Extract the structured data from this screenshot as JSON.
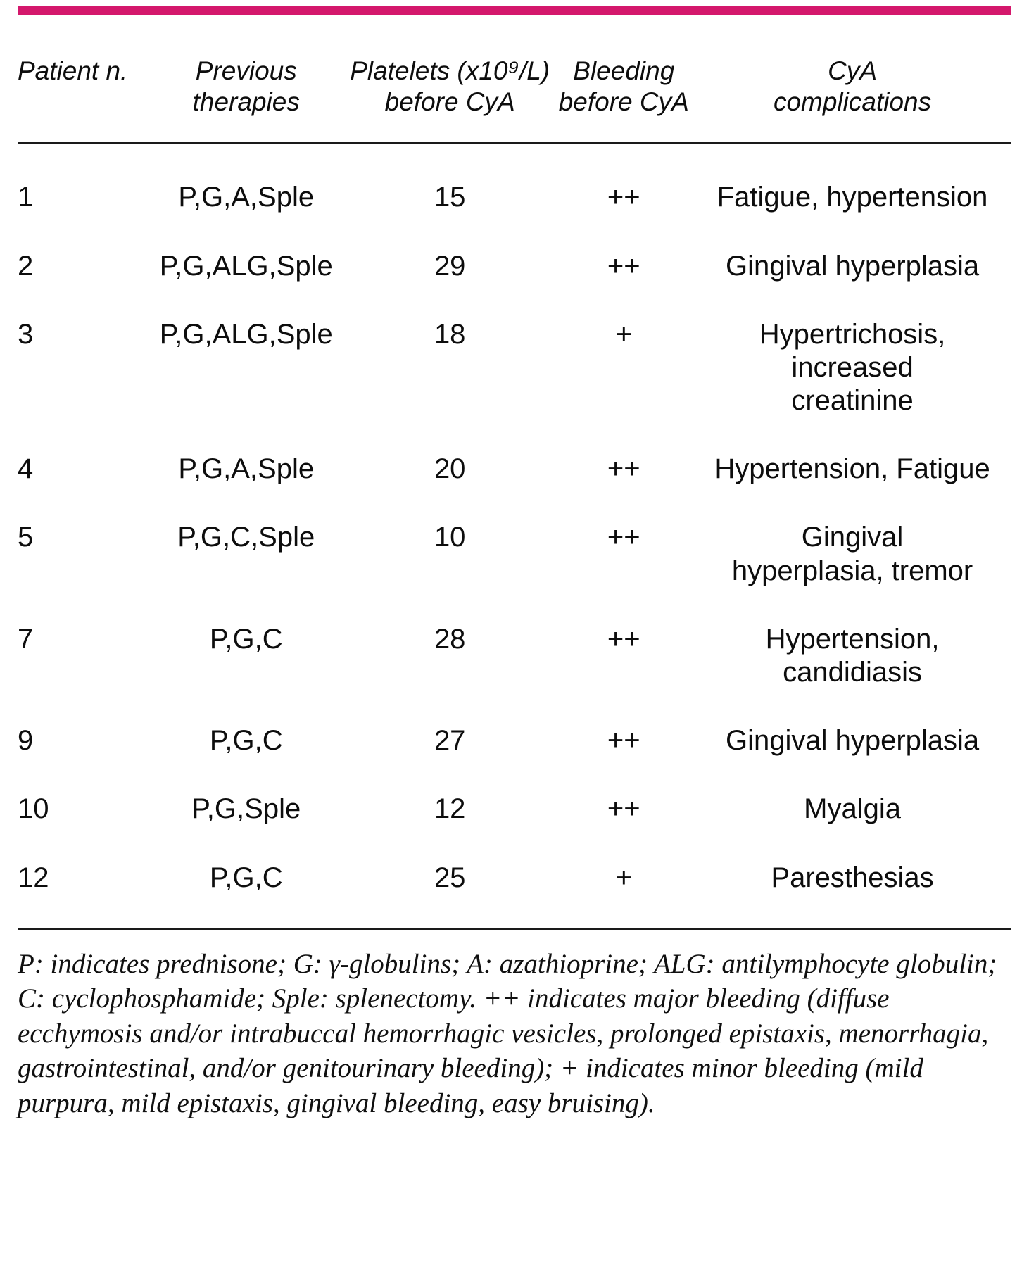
{
  "accent_color": "#d4186c",
  "table": {
    "headers": [
      "Patient n.",
      "Previous\ntherapies",
      "Platelets (x10⁹/L)\nbefore CyA",
      "Bleeding\nbefore CyA",
      "CyA\ncomplications"
    ],
    "rows": [
      {
        "patient": "1",
        "therapies": "P,G,A,Sple",
        "platelets": "15",
        "bleeding": "++",
        "complications": "Fatigue, hypertension"
      },
      {
        "patient": "2",
        "therapies": "P,G,ALG,Sple",
        "platelets": "29",
        "bleeding": "++",
        "complications": "Gingival hyperplasia"
      },
      {
        "patient": "3",
        "therapies": "P,G,ALG,Sple",
        "platelets": "18",
        "bleeding": "+",
        "complications": "Hypertrichosis,\nincreased\ncreatinine"
      },
      {
        "patient": "4",
        "therapies": "P,G,A,Sple",
        "platelets": "20",
        "bleeding": "++",
        "complications": "Hypertension, Fatigue"
      },
      {
        "patient": "5",
        "therapies": "P,G,C,Sple",
        "platelets": "10",
        "bleeding": "++",
        "complications": "Gingival\nhyperplasia, tremor"
      },
      {
        "patient": "7",
        "therapies": "P,G,C",
        "platelets": "28",
        "bleeding": "++",
        "complications": "Hypertension,\ncandidiasis"
      },
      {
        "patient": "9",
        "therapies": "P,G,C",
        "platelets": "27",
        "bleeding": "++",
        "complications": "Gingival hyperplasia"
      },
      {
        "patient": "10",
        "therapies": "P,G,Sple",
        "platelets": "12",
        "bleeding": "++",
        "complications": "Myalgia"
      },
      {
        "patient": "12",
        "therapies": "P,G,C",
        "platelets": "25",
        "bleeding": "+",
        "complications": "Paresthesias"
      }
    ]
  },
  "footnote": "P: indicates prednisone; G: γ-globulins; A: azathioprine; ALG: antilymphocyte globulin; C: cyclophosphamide; Sple: splenectomy. ++ indicates major bleeding (diffuse ecchymosis and/or intrabuccal hemorrhagic vesicles, prolonged epistaxis, menorrhagia, gastrointestinal, and/or genitourinary bleeding); + indicates minor bleeding (mild purpura, mild epistaxis, gingival bleeding, easy bruising)."
}
